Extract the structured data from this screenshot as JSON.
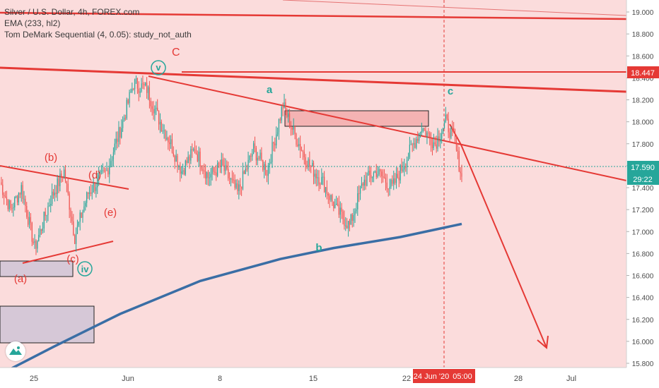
{
  "legend": {
    "symbol_line": "Silver / U.S. Dollar, 4h, FOREX.com",
    "ema_line": "EMA (233, hl2)",
    "study_line": "Tom DeMark Sequential (4, 0.05): study_not_auth"
  },
  "colors": {
    "background": "#fbdcdc",
    "candle_up": "#26a69a",
    "candle_down": "#ef5350",
    "trendline": "#e53935",
    "ema": "#3a6ea5",
    "wave_green": "#26a69a",
    "wave_red": "#e53935"
  },
  "price_axis": {
    "labels": [
      "19.000",
      "18.800",
      "18.600",
      "18.400",
      "18.200",
      "18.000",
      "17.800",
      "17.600",
      "17.400",
      "17.200",
      "17.000",
      "16.800",
      "16.600",
      "16.400",
      "16.200",
      "16.000",
      "15.800"
    ],
    "last_price": "17.590",
    "countdown": "29:22",
    "marker_price": "18.447"
  },
  "time_axis": {
    "labels": [
      "25",
      "Jun",
      "8",
      "15",
      "22",
      "28",
      "Jul"
    ],
    "highlight_date": "24 Jun '20",
    "highlight_time": "05:00"
  },
  "wave_labels": {
    "big_c": "C",
    "v": "v",
    "a": "a",
    "b": "b",
    "c": "c",
    "iv": "iv",
    "sub_a": "(a)",
    "sub_b": "(b)",
    "sub_c": "(c)",
    "sub_d": "(d)",
    "sub_e": "(e)"
  },
  "chart_data": {
    "type": "candlestick",
    "symbol": "Silver / U.S. Dollar",
    "interval": "4h",
    "y_range": [
      15.75,
      19.05
    ],
    "last": 17.59,
    "marker_level": 18.447,
    "pivots": [
      {
        "t": 0,
        "p": 17.45
      },
      {
        "t": 8,
        "p": 17.2
      },
      {
        "t": 16,
        "p": 17.4
      },
      {
        "t": 26,
        "p": 16.85
      },
      {
        "t": 38,
        "p": 17.3
      },
      {
        "t": 48,
        "p": 17.55
      },
      {
        "t": 56,
        "p": 16.95
      },
      {
        "t": 66,
        "p": 17.35
      },
      {
        "t": 80,
        "p": 17.55
      },
      {
        "t": 92,
        "p": 18.0
      },
      {
        "t": 100,
        "p": 18.35
      },
      {
        "t": 110,
        "p": 18.3
      },
      {
        "t": 118,
        "p": 18.05
      },
      {
        "t": 128,
        "p": 17.8
      },
      {
        "t": 136,
        "p": 17.55
      },
      {
        "t": 146,
        "p": 17.75
      },
      {
        "t": 156,
        "p": 17.5
      },
      {
        "t": 166,
        "p": 17.6
      },
      {
        "t": 178,
        "p": 17.35
      },
      {
        "t": 190,
        "p": 17.75
      },
      {
        "t": 200,
        "p": 17.55
      },
      {
        "t": 212,
        "p": 18.15
      },
      {
        "t": 222,
        "p": 17.85
      },
      {
        "t": 232,
        "p": 17.6
      },
      {
        "t": 242,
        "p": 17.45
      },
      {
        "t": 252,
        "p": 17.2
      },
      {
        "t": 262,
        "p": 17.05
      },
      {
        "t": 272,
        "p": 17.45
      },
      {
        "t": 282,
        "p": 17.55
      },
      {
        "t": 294,
        "p": 17.4
      },
      {
        "t": 304,
        "p": 17.65
      },
      {
        "t": 316,
        "p": 17.95
      },
      {
        "t": 326,
        "p": 17.8
      },
      {
        "t": 334,
        "p": 18.0
      },
      {
        "t": 340,
        "p": 17.85
      },
      {
        "t": 346,
        "p": 17.5
      }
    ],
    "ema": [
      {
        "t": 0,
        "p": 15.7
      },
      {
        "t": 40,
        "p": 15.95
      },
      {
        "t": 90,
        "p": 16.25
      },
      {
        "t": 150,
        "p": 16.55
      },
      {
        "t": 210,
        "p": 16.75
      },
      {
        "t": 250,
        "p": 16.85
      },
      {
        "t": 300,
        "p": 16.95
      },
      {
        "t": 346,
        "p": 17.07
      }
    ]
  }
}
